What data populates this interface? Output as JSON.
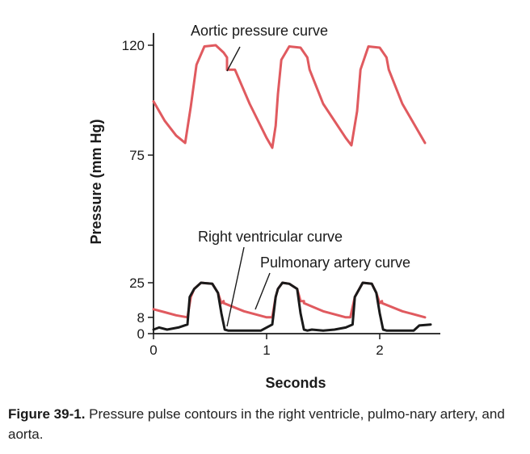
{
  "chart_data": {
    "type": "line",
    "xlabel": "Seconds",
    "ylabel": "Pressure (mm Hg)",
    "xlim": [
      0,
      2.45
    ],
    "ylim": [
      0,
      125
    ],
    "x_ticks": [
      0,
      1,
      2
    ],
    "y_ticks": [
      0,
      8,
      25,
      75,
      120
    ],
    "y_axis_break": true,
    "grid": false,
    "series": [
      {
        "name": "Aortic pressure curve",
        "color": "#e05a5f",
        "x": [
          0,
          0.1,
          0.2,
          0.28,
          0.33,
          0.38,
          0.45,
          0.55,
          0.62,
          0.65,
          0.65,
          0.72,
          0.85,
          1.0,
          1.05,
          1.08,
          1.1,
          1.13,
          1.2,
          1.3,
          1.36,
          1.38,
          1.38,
          1.5,
          1.7,
          1.75,
          1.8,
          1.83,
          1.9,
          2.0,
          2.06,
          2.08,
          2.08,
          2.2,
          2.4
        ],
        "y": [
          97,
          89,
          83,
          80,
          95,
          112,
          119.5,
          120,
          117,
          115,
          110,
          110,
          96,
          82,
          78,
          87,
          100,
          114,
          119.5,
          119,
          115,
          110,
          110,
          96,
          82,
          79,
          93,
          110,
          119.5,
          119,
          115,
          110,
          110,
          96,
          80
        ]
      },
      {
        "name": "Pulmonary artery curve",
        "color": "#e05a5f",
        "x": [
          0,
          0.1,
          0.2,
          0.3,
          0.33,
          0.36,
          0.42,
          0.52,
          0.57,
          0.6,
          0.62,
          0.62,
          0.8,
          1.0,
          1.05,
          1.08,
          1.1,
          1.14,
          1.2,
          1.27,
          1.3,
          1.33,
          1.33,
          1.5,
          1.7,
          1.74,
          1.78,
          1.85,
          1.93,
          1.97,
          2.0,
          2.02,
          2.02,
          2.2,
          2.4
        ],
        "y": [
          12,
          10.5,
          9,
          8,
          18,
          22,
          25,
          24.5,
          20,
          15,
          16,
          15,
          11,
          8,
          8,
          18,
          22,
          25,
          24.5,
          22,
          16,
          16,
          15,
          11,
          8,
          8,
          18,
          25,
          24.5,
          20,
          15,
          16,
          15,
          11,
          8
        ]
      },
      {
        "name": "Right ventricular curve",
        "color": "#1a1a1a",
        "x": [
          0,
          0.05,
          0.12,
          0.22,
          0.3,
          0.32,
          0.36,
          0.42,
          0.52,
          0.57,
          0.6,
          0.63,
          0.66,
          0.8,
          0.95,
          1.05,
          1.08,
          1.1,
          1.14,
          1.2,
          1.27,
          1.3,
          1.33,
          1.36,
          1.4,
          1.5,
          1.6,
          1.7,
          1.76,
          1.78,
          1.85,
          1.93,
          1.97,
          2.0,
          2.03,
          2.06,
          2.2,
          2.3,
          2.35,
          2.45
        ],
        "y": [
          2,
          3,
          2,
          3,
          4.5,
          18,
          22,
          25,
          24.5,
          20,
          10,
          2,
          1.5,
          1.5,
          1.5,
          4.5,
          18,
          22,
          25,
          24.5,
          22,
          10,
          2,
          1.5,
          2,
          1.5,
          2,
          3,
          4.5,
          18,
          25,
          24.5,
          20,
          10,
          2,
          1.5,
          1.5,
          1.5,
          4,
          4.5
        ]
      }
    ]
  },
  "annotations": {
    "aortic": "Aortic pressure curve",
    "right_ventricular": "Right ventricular curve",
    "pulmonary": "Pulmonary artery curve"
  },
  "caption": {
    "label": "Figure 39-1.",
    "text": " Pressure pulse contours in the right ventricle, pulmo-nary artery, and aorta."
  }
}
